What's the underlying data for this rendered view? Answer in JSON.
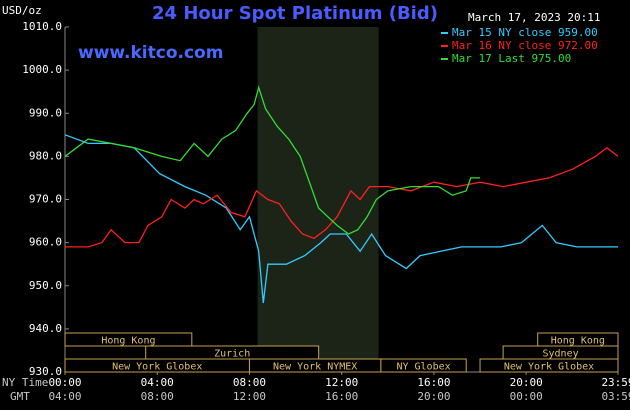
{
  "chart_data": {
    "type": "line",
    "title": "24 Hour Spot Platinum (Bid)",
    "unit_label": "USD/oz",
    "timestamp": "March 17, 2023 20:11",
    "watermark": "www.kitco.com",
    "x_label_ny": "NY Time",
    "x_label_gmt": "GMT",
    "xlim": [
      0,
      23.983
    ],
    "xticks": [
      {
        "value": 0,
        "label": "00:00"
      },
      {
        "value": 4,
        "label": "04:00"
      },
      {
        "value": 8,
        "label": "08:00"
      },
      {
        "value": 12,
        "label": "12:00"
      },
      {
        "value": 16,
        "label": "16:00"
      },
      {
        "value": 20,
        "label": "20:00"
      },
      {
        "value": 23.983,
        "label": "23:59"
      }
    ],
    "gmt_ticks": [
      "04:00",
      "08:00",
      "12:00",
      "16:00",
      "20:00",
      "00:00",
      "03:59"
    ],
    "ylim": [
      930,
      1010
    ],
    "yticks": [
      {
        "value": 930,
        "label": "930.0"
      },
      {
        "value": 940,
        "label": "940.0"
      },
      {
        "value": 950,
        "label": "950.0"
      },
      {
        "value": 960,
        "label": "960.0"
      },
      {
        "value": 970,
        "label": "970.0"
      },
      {
        "value": 980,
        "label": "980.0"
      },
      {
        "value": 990,
        "label": "990.0"
      },
      {
        "value": 1000,
        "label": "1000.0"
      },
      {
        "value": 1010,
        "label": "1010.0"
      }
    ],
    "grid": false,
    "highlight_x": [
      8.35,
      13.6
    ],
    "series": [
      {
        "name": "Mar 15 NY close 959.00",
        "color": "#33ccff",
        "x": [
          0,
          1,
          2,
          3,
          4.1,
          5.2,
          6.1,
          7,
          7.6,
          8,
          8.4,
          8.6,
          8.8,
          9.6,
          10.4,
          11.1,
          11.5,
          12.2,
          12.8,
          13.3,
          13.9,
          14.8,
          15.4,
          16.3,
          17.2,
          18.9,
          19.8,
          20.7,
          21.3,
          22.2,
          23.983
        ],
        "values": [
          985,
          983,
          983,
          982,
          976,
          973,
          971,
          968,
          963,
          966,
          958,
          946,
          955,
          955,
          957,
          960,
          962,
          962,
          958,
          962,
          957,
          954,
          957,
          958,
          959,
          959,
          960,
          964,
          960,
          959,
          959
        ]
      },
      {
        "name": "Mar 16 NY close 972.00",
        "color": "#ff2020",
        "x": [
          0,
          1,
          1.6,
          2,
          2.6,
          3.2,
          3.6,
          4.2,
          4.6,
          5.2,
          5.6,
          6,
          6.6,
          7.2,
          7.8,
          8.3,
          8.8,
          9.3,
          9.8,
          10.3,
          10.8,
          11.3,
          11.8,
          12.4,
          12.8,
          13.2,
          14,
          15,
          16,
          17,
          18,
          19,
          20,
          21,
          22,
          23,
          23.5,
          23.983
        ],
        "values": [
          959,
          959,
          960,
          963,
          960,
          960,
          964,
          966,
          970,
          968,
          970,
          969,
          971,
          967,
          966,
          972,
          970,
          969,
          965,
          962,
          961,
          963,
          966,
          972,
          970,
          973,
          973,
          972,
          974,
          973,
          974,
          973,
          974,
          975,
          977,
          980,
          982,
          980
        ]
      },
      {
        "name": "Mar 17 Last 975.00",
        "color": "#33dd33",
        "x": [
          0,
          0.5,
          1,
          2,
          3,
          3.6,
          4.2,
          5,
          5.6,
          6.2,
          6.8,
          7.4,
          7.9,
          8.2,
          8.4,
          8.7,
          9.2,
          9.7,
          10.2,
          10.6,
          11,
          11.4,
          11.8,
          12.3,
          12.7,
          13.1,
          13.5,
          14,
          15,
          15.5,
          16.2,
          16.8,
          17.4,
          17.6,
          18
        ],
        "values": [
          980,
          982,
          984,
          983,
          982,
          981,
          980,
          979,
          983,
          980,
          984,
          986,
          990,
          992,
          996,
          991,
          987,
          984,
          980,
          974,
          968,
          966,
          964,
          962,
          963,
          966,
          970,
          972,
          973,
          973,
          973,
          971,
          972,
          975,
          975
        ]
      }
    ],
    "sessions": [
      {
        "label": "Hong Kong",
        "start": 0,
        "end": 5.5,
        "row": 0
      },
      {
        "label": "Hong Kong",
        "start": 20.5,
        "end": 23.983,
        "row": 0
      },
      {
        "label": "Zurich",
        "start": 3.5,
        "end": 11,
        "row": 1
      },
      {
        "label": "Sydney",
        "start": 19,
        "end": 23.983,
        "row": 1
      },
      {
        "label": "New York Globex",
        "start": 0,
        "end": 8,
        "row": 2
      },
      {
        "label": "New York NYMEX",
        "start": 8,
        "end": 13.7,
        "row": 2
      },
      {
        "label": "NY Globex",
        "start": 13.7,
        "end": 17.4,
        "row": 2
      },
      {
        "label": "New York Globex",
        "start": 18,
        "end": 23.983,
        "row": 2
      }
    ]
  }
}
